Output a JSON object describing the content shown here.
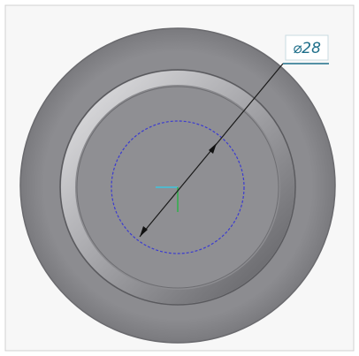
{
  "viewport": {
    "dimension": {
      "label": "⌀28"
    }
  }
}
